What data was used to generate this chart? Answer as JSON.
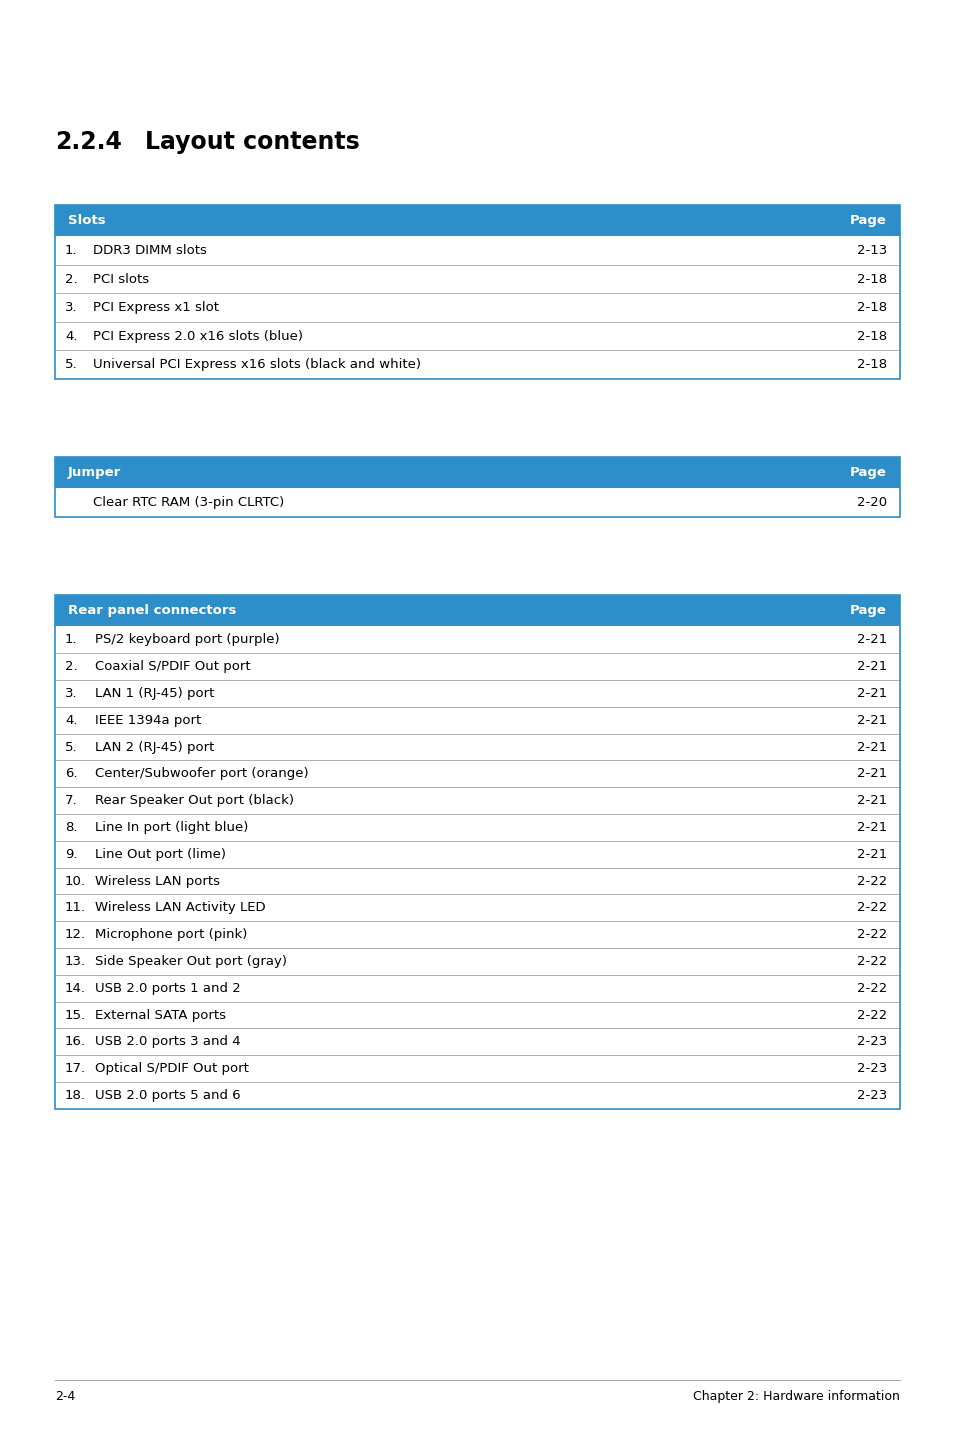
{
  "title_num": "2.2.4",
  "title_text": "Layout contents",
  "header_color": "#2e8ec9",
  "header_text_color": "#ffffff",
  "border_color": "#b0b0b0",
  "text_color": "#000000",
  "table1_header": [
    "Slots",
    "Page"
  ],
  "table1_rows": [
    [
      "1.",
      "DDR3 DIMM slots",
      "2-13"
    ],
    [
      "2.",
      "PCI slots",
      "2-18"
    ],
    [
      "3.",
      "PCI Express x1 slot",
      "2-18"
    ],
    [
      "4.",
      "PCI Express 2.0 x16 slots (blue)",
      "2-18"
    ],
    [
      "5.",
      "Universal PCI Express x16 slots (black and white)",
      "2-18"
    ]
  ],
  "table2_header": [
    "Jumper",
    "Page"
  ],
  "table2_rows": [
    [
      "",
      "Clear RTC RAM (3-pin CLRTC)",
      "2-20"
    ]
  ],
  "table3_header": [
    "Rear panel connectors",
    "Page"
  ],
  "table3_rows": [
    [
      "1.",
      "PS/2 keyboard port (purple)",
      "2-21"
    ],
    [
      "2.",
      "Coaxial S/PDIF Out port",
      "2-21"
    ],
    [
      "3.",
      "LAN 1 (RJ-45) port",
      "2-21"
    ],
    [
      "4.",
      "IEEE 1394a port",
      "2-21"
    ],
    [
      "5.",
      "LAN 2 (RJ-45) port",
      "2-21"
    ],
    [
      "6.",
      "Center/Subwoofer port (orange)",
      "2-21"
    ],
    [
      "7.",
      "Rear Speaker Out port (black)",
      "2-21"
    ],
    [
      "8.",
      "Line In port (light blue)",
      "2-21"
    ],
    [
      "9.",
      "Line Out port (lime)",
      "2-21"
    ],
    [
      "10.",
      "Wireless LAN ports",
      "2-22"
    ],
    [
      "11.",
      "Wireless LAN Activity LED",
      "2-22"
    ],
    [
      "12.",
      "Microphone port (pink)",
      "2-22"
    ],
    [
      "13.",
      "Side Speaker Out port (gray)",
      "2-22"
    ],
    [
      "14.",
      "USB 2.0 ports 1 and 2",
      "2-22"
    ],
    [
      "15.",
      "External SATA ports",
      "2-22"
    ],
    [
      "16.",
      "USB 2.0 ports 3 and 4",
      "2-23"
    ],
    [
      "17.",
      "Optical S/PDIF Out port",
      "2-23"
    ],
    [
      "18.",
      "USB 2.0 ports 5 and 6",
      "2-23"
    ]
  ],
  "footer_left": "2-4",
  "footer_right": "Chapter 2: Hardware information"
}
